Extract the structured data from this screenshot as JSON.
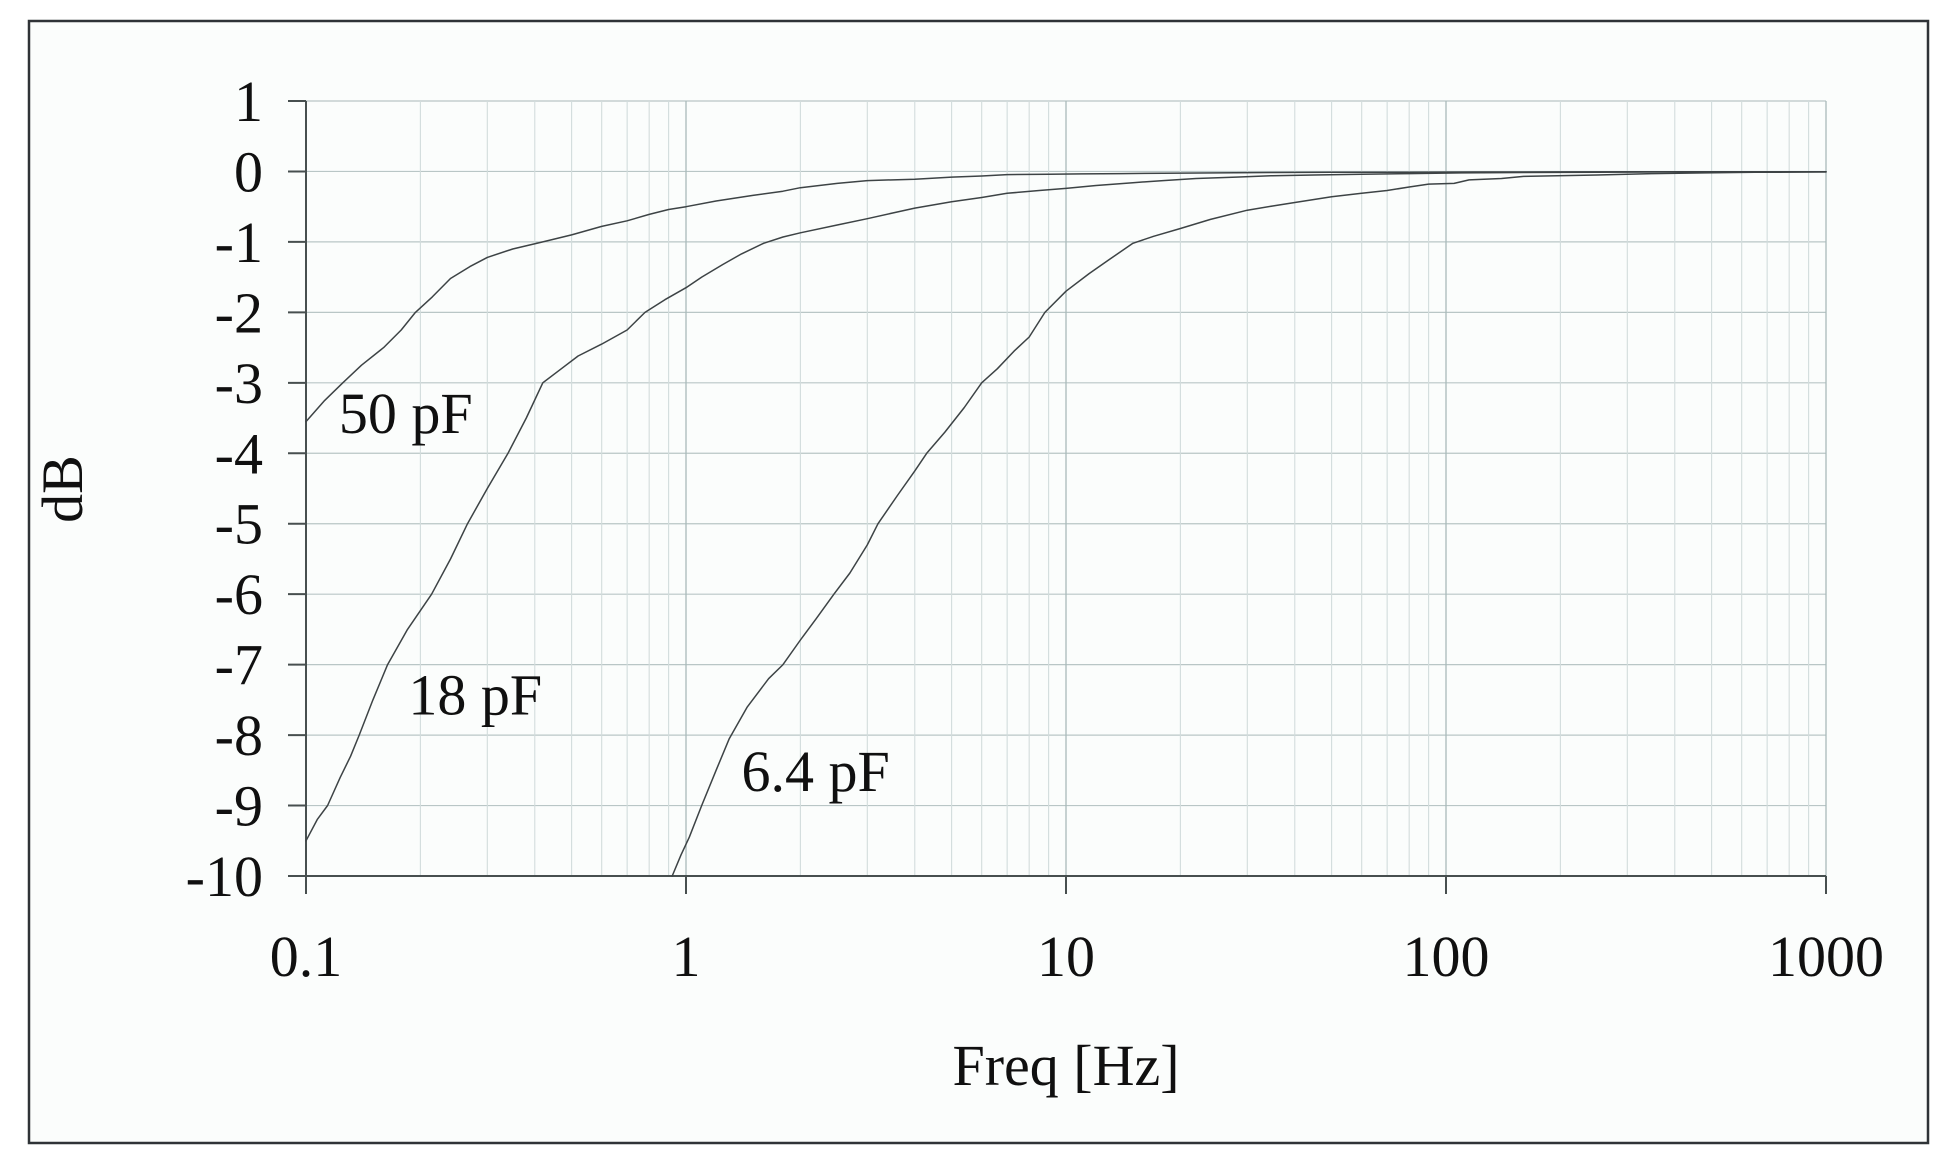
{
  "figure": {
    "background": "#ffffff",
    "plot_background": "#fbfdfc",
    "border_color": "#2f3337",
    "axis_color": "#474f4f",
    "grid_h_color": "#b9c6c6",
    "grid_minor_color": "#d2dcdc",
    "grid_major_color": "#a9baba",
    "curve_color": "#3d4345",
    "text_color": "#101010"
  },
  "chart_data": {
    "type": "line",
    "title": "",
    "xlabel": "Freq [Hz]",
    "ylabel": "dB",
    "x_scale": "log",
    "xlim": [
      0.1,
      1000
    ],
    "ylim": [
      -10,
      1
    ],
    "grid": true,
    "legend_position": "inline-labels",
    "x_ticks": [
      0.1,
      1,
      10,
      100,
      1000
    ],
    "x_tick_labels": [
      "0.1",
      "1",
      "10",
      "100",
      "1000"
    ],
    "y_ticks": [
      1,
      0,
      -1,
      -2,
      -3,
      -4,
      -5,
      -6,
      -7,
      -8,
      -9,
      -10
    ],
    "y_tick_labels": [
      "1",
      "0",
      "-1",
      "-2",
      "-3",
      "-4",
      "-5",
      "-6",
      "-7",
      "-8",
      "-9",
      "-10"
    ],
    "series": [
      {
        "name": "50 pF",
        "label_anchor": {
          "f": 0.122,
          "db": -3.12
        },
        "points": [
          [
            0.1,
            -3.55
          ],
          [
            0.112,
            -3.25
          ],
          [
            0.125,
            -3.0
          ],
          [
            0.14,
            -2.75
          ],
          [
            0.16,
            -2.5
          ],
          [
            0.178,
            -2.25
          ],
          [
            0.194,
            -2.0
          ],
          [
            0.215,
            -1.78
          ],
          [
            0.24,
            -1.52
          ],
          [
            0.27,
            -1.35
          ],
          [
            0.3,
            -1.22
          ],
          [
            0.35,
            -1.1
          ],
          [
            0.42,
            -1.0
          ],
          [
            0.5,
            -0.9
          ],
          [
            0.6,
            -0.78
          ],
          [
            0.7,
            -0.7
          ],
          [
            0.8,
            -0.61
          ],
          [
            0.9,
            -0.54
          ],
          [
            1.0,
            -0.5
          ],
          [
            1.2,
            -0.42
          ],
          [
            1.5,
            -0.34
          ],
          [
            1.8,
            -0.28
          ],
          [
            2.0,
            -0.23
          ],
          [
            2.5,
            -0.17
          ],
          [
            3.0,
            -0.13
          ],
          [
            4.0,
            -0.11
          ],
          [
            5.0,
            -0.08
          ],
          [
            6.0,
            -0.065
          ],
          [
            7.0,
            -0.045
          ],
          [
            9.0,
            -0.04
          ],
          [
            11,
            -0.035
          ],
          [
            14,
            -0.03
          ],
          [
            18,
            -0.025
          ],
          [
            25,
            -0.02
          ],
          [
            35,
            -0.015
          ],
          [
            50,
            -0.012
          ],
          [
            80,
            -0.01
          ],
          [
            120,
            -0.008
          ],
          [
            200,
            -0.006
          ],
          [
            350,
            -0.004
          ],
          [
            600,
            -0.003
          ],
          [
            1000,
            -0.003
          ]
        ]
      },
      {
        "name": "18 pF",
        "label_anchor": {
          "f": 0.186,
          "db": -7.12
        },
        "points": [
          [
            0.1,
            -9.5
          ],
          [
            0.107,
            -9.2
          ],
          [
            0.114,
            -9.0
          ],
          [
            0.123,
            -8.6
          ],
          [
            0.131,
            -8.3
          ],
          [
            0.138,
            -8.0
          ],
          [
            0.15,
            -7.5
          ],
          [
            0.164,
            -7.0
          ],
          [
            0.185,
            -6.5
          ],
          [
            0.214,
            -6.0
          ],
          [
            0.24,
            -5.5
          ],
          [
            0.266,
            -5.0
          ],
          [
            0.3,
            -4.5
          ],
          [
            0.34,
            -4.0
          ],
          [
            0.38,
            -3.5
          ],
          [
            0.42,
            -3.0
          ],
          [
            0.47,
            -2.8
          ],
          [
            0.52,
            -2.62
          ],
          [
            0.6,
            -2.45
          ],
          [
            0.7,
            -2.25
          ],
          [
            0.78,
            -2.0
          ],
          [
            0.88,
            -1.82
          ],
          [
            1.0,
            -1.65
          ],
          [
            1.1,
            -1.5
          ],
          [
            1.25,
            -1.32
          ],
          [
            1.4,
            -1.17
          ],
          [
            1.6,
            -1.02
          ],
          [
            1.8,
            -0.93
          ],
          [
            2.0,
            -0.87
          ],
          [
            2.5,
            -0.76
          ],
          [
            3.0,
            -0.67
          ],
          [
            3.5,
            -0.59
          ],
          [
            4.0,
            -0.52
          ],
          [
            5.0,
            -0.43
          ],
          [
            6.0,
            -0.37
          ],
          [
            7.0,
            -0.31
          ],
          [
            8.5,
            -0.27
          ],
          [
            10,
            -0.24
          ],
          [
            12,
            -0.2
          ],
          [
            15,
            -0.16
          ],
          [
            18,
            -0.13
          ],
          [
            22,
            -0.1
          ],
          [
            28,
            -0.08
          ],
          [
            35,
            -0.06
          ],
          [
            45,
            -0.05
          ],
          [
            60,
            -0.04
          ],
          [
            80,
            -0.03
          ],
          [
            110,
            -0.02
          ],
          [
            160,
            -0.015
          ],
          [
            250,
            -0.01
          ],
          [
            400,
            -0.007
          ],
          [
            650,
            -0.005
          ],
          [
            1000,
            -0.004
          ]
        ]
      },
      {
        "name": "6.4 pF",
        "label_anchor": {
          "f": 1.4,
          "db": -8.2
        },
        "points": [
          [
            0.92,
            -10
          ],
          [
            0.97,
            -9.7
          ],
          [
            1.02,
            -9.45
          ],
          [
            1.1,
            -9.0
          ],
          [
            1.2,
            -8.5
          ],
          [
            1.3,
            -8.05
          ],
          [
            1.45,
            -7.6
          ],
          [
            1.65,
            -7.2
          ],
          [
            1.8,
            -7.0
          ],
          [
            2.0,
            -6.65
          ],
          [
            2.2,
            -6.35
          ],
          [
            2.45,
            -6.0
          ],
          [
            2.7,
            -5.7
          ],
          [
            3.0,
            -5.3
          ],
          [
            3.2,
            -5.0
          ],
          [
            3.6,
            -4.6
          ],
          [
            4.0,
            -4.25
          ],
          [
            4.3,
            -4.0
          ],
          [
            4.8,
            -3.7
          ],
          [
            5.4,
            -3.35
          ],
          [
            6.0,
            -3.0
          ],
          [
            6.6,
            -2.8
          ],
          [
            7.3,
            -2.55
          ],
          [
            8.0,
            -2.35
          ],
          [
            8.8,
            -2.0
          ],
          [
            10,
            -1.7
          ],
          [
            11.5,
            -1.45
          ],
          [
            13,
            -1.25
          ],
          [
            15,
            -1.02
          ],
          [
            17,
            -0.92
          ],
          [
            20,
            -0.81
          ],
          [
            24,
            -0.68
          ],
          [
            30,
            -0.55
          ],
          [
            35,
            -0.49
          ],
          [
            40,
            -0.44
          ],
          [
            50,
            -0.36
          ],
          [
            60,
            -0.31
          ],
          [
            70,
            -0.27
          ],
          [
            80,
            -0.22
          ],
          [
            90,
            -0.18
          ],
          [
            105,
            -0.17
          ],
          [
            115,
            -0.12
          ],
          [
            140,
            -0.1
          ],
          [
            160,
            -0.07
          ],
          [
            250,
            -0.05
          ],
          [
            350,
            -0.03
          ],
          [
            480,
            -0.02
          ],
          [
            650,
            -0.012
          ],
          [
            1000,
            -0.008
          ]
        ]
      }
    ]
  }
}
